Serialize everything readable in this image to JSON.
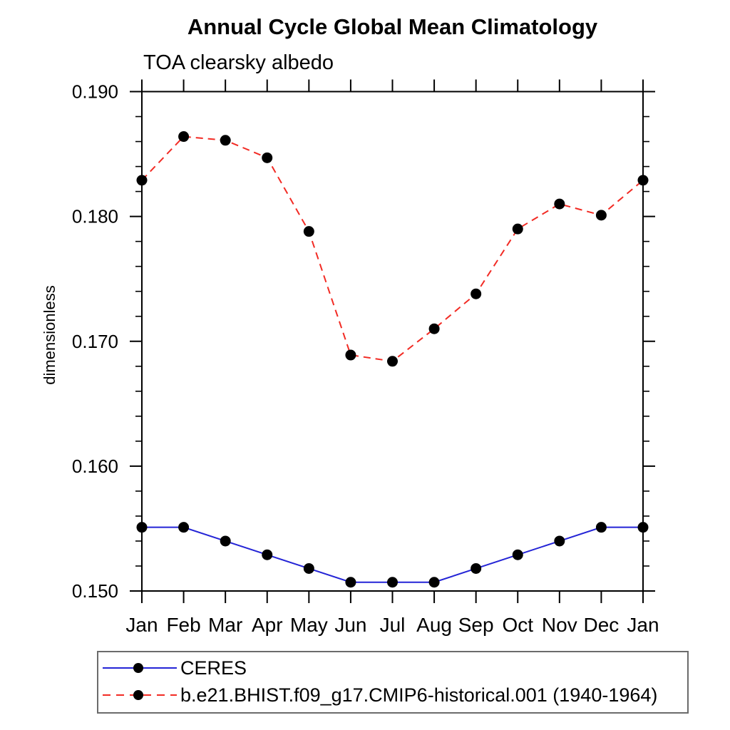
{
  "title": "Annual Cycle Global Mean Climatology",
  "subtitle": "TOA clearsky albedo",
  "ylabel": "dimensionless",
  "chart_data": {
    "type": "line",
    "categories": [
      "Jan",
      "Feb",
      "Mar",
      "Apr",
      "May",
      "Jun",
      "Jul",
      "Aug",
      "Sep",
      "Oct",
      "Nov",
      "Dec",
      "Jan"
    ],
    "series": [
      {
        "name": "CERES",
        "color": "#2424d6",
        "line_style": "solid",
        "marker": "filled-circle",
        "marker_color": "#000000",
        "values": [
          0.1551,
          0.1551,
          0.154,
          0.1529,
          0.1518,
          0.1507,
          0.1507,
          0.1507,
          0.1518,
          0.1529,
          0.154,
          0.1551,
          0.1551
        ]
      },
      {
        "name": "b.e21.BHIST.f09_g17.CMIP6-historical.001 (1940-1964)",
        "color": "#f22b24",
        "line_style": "dashed",
        "marker": "filled-circle",
        "marker_color": "#000000",
        "values": [
          0.1829,
          0.1864,
          0.1861,
          0.1847,
          0.1788,
          0.1689,
          0.1684,
          0.171,
          0.1738,
          0.179,
          0.181,
          0.1801,
          0.1829
        ]
      }
    ],
    "ylim": [
      0.15,
      0.19
    ],
    "yticks": [
      0.15,
      0.16,
      0.17,
      0.18,
      0.19
    ],
    "ytick_labels": [
      "0.150",
      "0.160",
      "0.170",
      "0.180",
      "0.190"
    ],
    "yminor_step": 0.002,
    "grid": false,
    "legend_position": "bottom-left",
    "axis_color": "#000000"
  }
}
